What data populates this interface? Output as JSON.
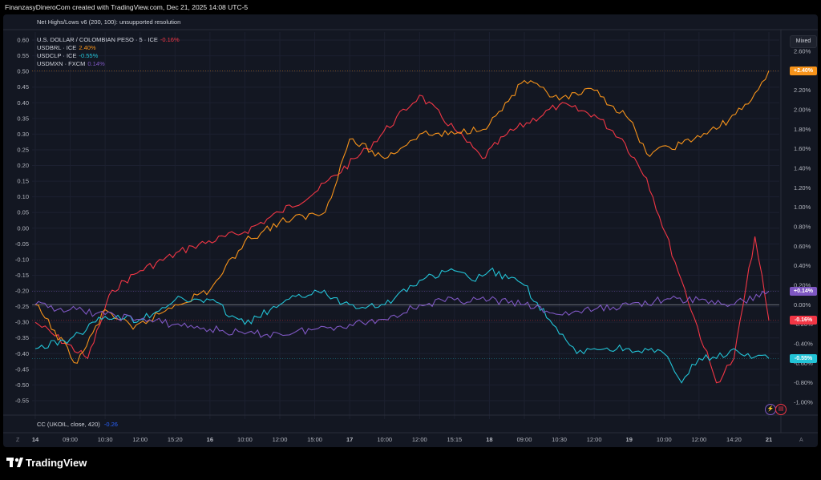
{
  "header": {
    "attribution": "FinanzasyDineroCom created with TradingView.com, Dec 21, 2025 14:08 UTC-5"
  },
  "indicator_top": {
    "label": "Net Highs/Lows v6 (200, 100): unsupported resolution"
  },
  "indicator_bottom": {
    "label": "CC (UKOIL, close, 420)",
    "value": "-0.26"
  },
  "legend": [
    {
      "name": "U.S. DOLLAR / COLOMBIAN PESO · 5 · ICE",
      "change": "-0.16%",
      "color": "#f23645"
    },
    {
      "name": "USDBRL · ICE",
      "change": "2.40%",
      "color": "#f7931a"
    },
    {
      "name": "USDCLP · ICE",
      "change": "-0.55%",
      "color": "#22c3d6"
    },
    {
      "name": "USDMXN · FXCM",
      "change": "0.14%",
      "color": "#7e57c2"
    }
  ],
  "scale_mode_button": "Mixed",
  "price_tags": [
    {
      "label": "+2.40%",
      "value": 2.4,
      "color": "#f7931a"
    },
    {
      "label": "+0.14%",
      "value": 0.14,
      "color": "#7e57c2"
    },
    {
      "label": "-0.16%",
      "value": -0.16,
      "color": "#f23645"
    },
    {
      "label": "-0.55%",
      "value": -0.55,
      "color": "#22c3d6"
    }
  ],
  "corner_buttons": {
    "left": "Z",
    "right": "A"
  },
  "footer": {
    "brand": "TradingView"
  },
  "chart_data": {
    "type": "line",
    "title": "U.S. DOLLAR / COLOMBIAN PESO · 5 · ICE",
    "x_tick_labels": [
      "14",
      "09:00",
      "10:30",
      "12:00",
      "15:20",
      "16",
      "10:00",
      "12:00",
      "15:00",
      "17",
      "10:00",
      "12:00",
      "15:15",
      "18",
      "09:00",
      "10:30",
      "12:00",
      "19",
      "10:00",
      "12:00",
      "14:20",
      "21"
    ],
    "left_axis": {
      "ticks": [
        0.6,
        0.55,
        0.5,
        0.45,
        0.4,
        0.35,
        0.3,
        0.25,
        0.2,
        0.15,
        0.1,
        0.05,
        0.0,
        -0.05,
        -0.1,
        -0.15,
        -0.2,
        -0.25,
        -0.3,
        -0.35,
        -0.4,
        -0.45,
        -0.5,
        -0.55
      ],
      "range": [
        -0.55,
        0.6
      ]
    },
    "right_axis": {
      "unit": "%",
      "ticks": [
        2.6,
        2.4,
        2.2,
        2.0,
        1.8,
        1.6,
        1.4,
        1.2,
        1.0,
        0.8,
        0.6,
        0.4,
        0.2,
        0.0,
        -0.2,
        -0.4,
        -0.6,
        -0.8,
        -1.0
      ],
      "range": [
        -1.0,
        2.6
      ]
    },
    "series": [
      {
        "name": "U.S. DOLLAR / COLOMBIAN PESO",
        "color": "#f23645",
        "axis": "right",
        "x": [
          0,
          1.5,
          2.2,
          3,
          4.5,
          6,
          7,
          8,
          9.5,
          11,
          12,
          12.8,
          13.5,
          15,
          16,
          16.8,
          17.5,
          18.5,
          19.5,
          20,
          20.6,
          21
        ],
        "values": [
          -0.18,
          -0.55,
          0.15,
          0.35,
          0.6,
          0.75,
          0.95,
          1.15,
          1.6,
          2.15,
          1.8,
          1.5,
          1.75,
          2.05,
          1.95,
          1.7,
          1.3,
          0.25,
          -0.8,
          -0.55,
          0.7,
          -0.16
        ]
      },
      {
        "name": "USDBRL",
        "color": "#f7931a",
        "axis": "right",
        "x": [
          0,
          1.2,
          2,
          2.8,
          4,
          5,
          6,
          7,
          8.3,
          9,
          10,
          11,
          12,
          13,
          14,
          15,
          16,
          17,
          17.5,
          18.5,
          19.5,
          20.5,
          21
        ],
        "values": [
          0.0,
          -0.6,
          -0.05,
          -0.25,
          0.0,
          0.15,
          0.65,
          0.85,
          0.95,
          1.7,
          1.5,
          1.75,
          1.75,
          1.85,
          2.3,
          2.1,
          2.2,
          1.9,
          1.55,
          1.65,
          1.8,
          2.1,
          2.4
        ]
      },
      {
        "name": "USDCLP",
        "color": "#22c3d6",
        "axis": "right",
        "x": [
          0,
          1,
          2,
          3,
          4,
          5,
          6,
          7,
          8,
          9,
          10,
          11,
          12,
          12.5,
          13,
          14,
          15,
          15.5,
          16,
          17,
          18,
          18.5,
          19,
          19.5,
          20,
          20.5,
          21
        ],
        "values": [
          -0.45,
          -0.35,
          -0.12,
          -0.15,
          0.05,
          0.05,
          -0.2,
          0.0,
          0.15,
          0.0,
          0.0,
          0.25,
          0.35,
          0.25,
          0.35,
          0.2,
          -0.3,
          -0.5,
          -0.45,
          -0.45,
          -0.5,
          -0.8,
          -0.55,
          -0.55,
          -0.45,
          -0.55,
          -0.55
        ]
      },
      {
        "name": "USDMXN",
        "color": "#7e57c2",
        "axis": "right",
        "x": [
          0,
          1,
          2,
          3,
          4,
          5,
          6,
          7,
          8,
          9,
          10,
          11,
          12,
          13,
          14,
          15,
          16,
          17,
          18,
          19,
          20,
          21
        ],
        "values": [
          0.0,
          -0.05,
          -0.1,
          -0.15,
          -0.2,
          -0.25,
          -0.3,
          -0.3,
          -0.25,
          -0.2,
          -0.15,
          0.0,
          0.05,
          0.05,
          0.0,
          -0.1,
          -0.05,
          0.0,
          0.05,
          0.05,
          0.0,
          0.14
        ]
      }
    ],
    "grid": true
  }
}
